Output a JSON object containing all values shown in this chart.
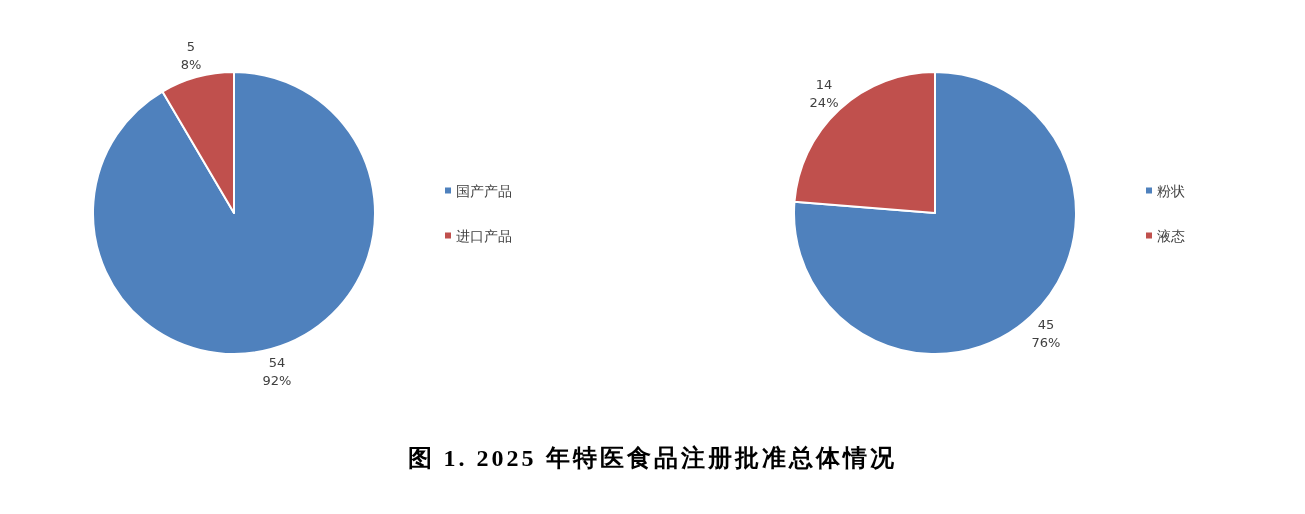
{
  "chart_data": [
    {
      "type": "pie",
      "categories": [
        "国产产品",
        "进口产品"
      ],
      "values": [
        54,
        5
      ],
      "colors": [
        "#4f81bd",
        "#c0504d"
      ],
      "value_labels": [
        "54\n92%",
        "5\n8%"
      ],
      "legend": "right",
      "annotations": [
        "图 1. 2025 年特医食品注册批准总体情况"
      ]
    },
    {
      "type": "pie",
      "categories": [
        "粉状",
        "液态"
      ],
      "values": [
        45,
        14
      ],
      "colors": [
        "#4f81bd",
        "#c0504d"
      ],
      "value_labels": [
        "45\n76%",
        "14\n24%"
      ],
      "legend": "right"
    }
  ]
}
